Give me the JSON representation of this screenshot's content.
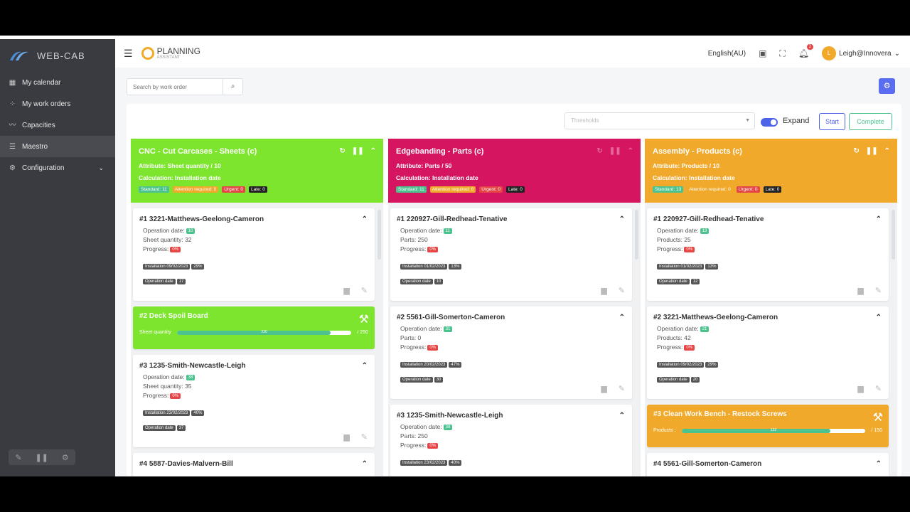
{
  "brand": {
    "name": "WEB-CAB",
    "app_title": "PLANNING",
    "app_subtitle": "ASSISTANT"
  },
  "sidebar": {
    "items": [
      {
        "label": "My calendar",
        "icon": "calendar-icon"
      },
      {
        "label": "My work orders",
        "icon": "grid-icon"
      },
      {
        "label": "Capacities",
        "icon": "chart-icon"
      },
      {
        "label": "Maestro",
        "icon": "list-icon"
      },
      {
        "label": "Configuration",
        "icon": "gear-icon"
      }
    ]
  },
  "header": {
    "language": "English(AU)",
    "notifications": "2",
    "avatar_initial": "L",
    "user": "Leigh@Innovera"
  },
  "search": {
    "placeholder": "Search by work order"
  },
  "toolbar": {
    "thresholds_placeholder": "Thresholds",
    "expand_label": "Expand",
    "start_label": "Start",
    "complete_label": "Complete"
  },
  "colors": {
    "green": "#7ee52e",
    "magenta": "#d61561",
    "orange": "#f0a92a",
    "accent": "#4d63e8"
  },
  "columns": [
    {
      "title": "CNC - Cut Carcases - Sheets (c)",
      "attribute": "Attribute: Sheet quantity / 10",
      "calculation": "Calculation: Installation date",
      "chips": [
        "Standard: 11",
        "Attention required: 0",
        "Urgent: 0",
        "Late: 0"
      ],
      "cards": [
        {
          "title": "#1  3221-Matthews-Geelong-Cameron",
          "op_label": "Operation date:",
          "op_val": "10",
          "qty_line": "Sheet quantity: 32",
          "progress_label": "Progress:",
          "progress": "0%",
          "tag1": "Installation 09/02/2023",
          "tag1b": "29%",
          "tag2": "Operation date",
          "tag2b": "17"
        },
        {
          "title": "#2  Deck Spoil Board",
          "qty_label": "Sheet quantity",
          "bar_val": "220",
          "bar_max": "/ 250",
          "fill": 0.88
        },
        {
          "title": "#3  1235-Smith-Newcastle-Leigh",
          "op_label": "Operation date:",
          "op_val": "38",
          "qty_line": "Sheet quantity: 35",
          "progress_label": "Progress:",
          "progress": "0%",
          "tag1": "Installation 23/02/2023",
          "tag1b": "40%",
          "tag2": "Operation date",
          "tag2b": "37"
        },
        {
          "title": "#4  5887-Davies-Malvern-Bill"
        }
      ]
    },
    {
      "title": "Edgebanding - Parts (c)",
      "attribute": "Attribute: Parts / 50",
      "calculation": "Calculation: Installation date",
      "chips": [
        "Standard: 11",
        "Attention required: 0",
        "Urgent: 0",
        "Late: 0"
      ],
      "cards": [
        {
          "title": "#1  220927-Gill-Redhead-Tenative",
          "op_label": "Operation date:",
          "op_val": "11",
          "qty_line": "Parts: 250",
          "progress_label": "Progress:",
          "progress": "0%",
          "tag1": "Installation 01/02/2023",
          "tag1b": "13%",
          "tag2": "Operation date",
          "tag2b": "10"
        },
        {
          "title": "#2  5561-Gill-Somerton-Cameron",
          "op_label": "Operation date:",
          "op_val": "31",
          "qty_line": "Parts: 0",
          "progress_label": "Progress:",
          "progress": "0%",
          "tag1": "Installation 20/02/2023",
          "tag1b": "47%",
          "tag2": "Operation date",
          "tag2b": "30"
        },
        {
          "title": "#3  1235-Smith-Newcastle-Leigh",
          "op_label": "Operation date:",
          "op_val": "38",
          "qty_line": "Parts: 250",
          "progress_label": "Progress:",
          "progress": "0%",
          "tag1": "Installation 23/02/2023",
          "tag1b": "40%"
        }
      ]
    },
    {
      "title": "Assembly - Products (c)",
      "attribute": "Attribute: Products / 10",
      "calculation": "Calculation: Installation date",
      "chips": [
        "Standard: 13",
        "Attention required: 0",
        "Urgent: 0",
        "Late: 0"
      ],
      "cards": [
        {
          "title": "#1  220927-Gill-Redhead-Tenative",
          "op_label": "Operation date:",
          "op_val": "13",
          "qty_line": "Products: 25",
          "progress_label": "Progress:",
          "progress": "0%",
          "tag1": "Installation 01/02/2023",
          "tag1b": "13%",
          "tag2": "Operation date",
          "tag2b": "12"
        },
        {
          "title": "#2  3221-Matthews-Geelong-Cameron",
          "op_label": "Operation date:",
          "op_val": "21",
          "qty_line": "Products: 42",
          "progress_label": "Progress:",
          "progress": "0%",
          "tag1": "Installation 09/02/2023",
          "tag1b": "29%",
          "tag2": "Operation date",
          "tag2b": "20"
        },
        {
          "title": "#3  Clean Work Bench - Restock Screws",
          "qty_label": "Products :",
          "bar_val": "122",
          "bar_max": "/ 150",
          "fill": 0.81
        },
        {
          "title": "#4  5561-Gill-Somerton-Cameron"
        }
      ]
    }
  ]
}
